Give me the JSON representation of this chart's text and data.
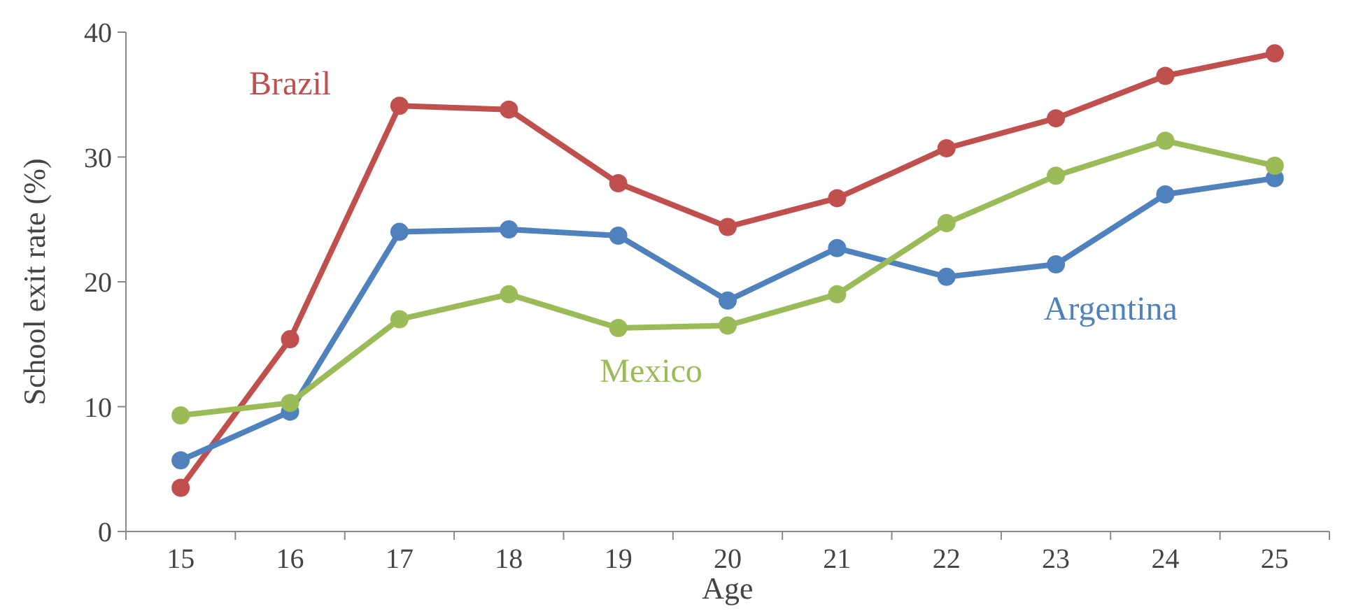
{
  "chart_data": {
    "type": "line",
    "xlabel": "Age",
    "ylabel": "School exit rate (%)",
    "categories": [
      "15",
      "16",
      "17",
      "18",
      "19",
      "20",
      "21",
      "22",
      "23",
      "24",
      "25"
    ],
    "series": [
      {
        "name": "Brazil",
        "color": "#c0504d",
        "values": [
          3.5,
          15.4,
          34.1,
          33.8,
          27.9,
          24.4,
          26.7,
          30.7,
          33.1,
          36.5,
          38.3
        ]
      },
      {
        "name": "Argentina",
        "color": "#4f81bd",
        "values": [
          5.7,
          9.6,
          24.0,
          24.2,
          23.7,
          18.5,
          22.7,
          20.4,
          21.4,
          27.0,
          28.3
        ]
      },
      {
        "name": "Mexico",
        "color": "#9bbb59",
        "values": [
          9.3,
          10.3,
          17.0,
          19.0,
          16.3,
          16.5,
          19.0,
          24.7,
          28.5,
          31.3,
          29.3
        ]
      }
    ],
    "ylim": [
      0,
      40
    ],
    "yticks": [
      0,
      10,
      20,
      30,
      40
    ],
    "grid": false,
    "marker": "circle",
    "line_style": "solid"
  }
}
